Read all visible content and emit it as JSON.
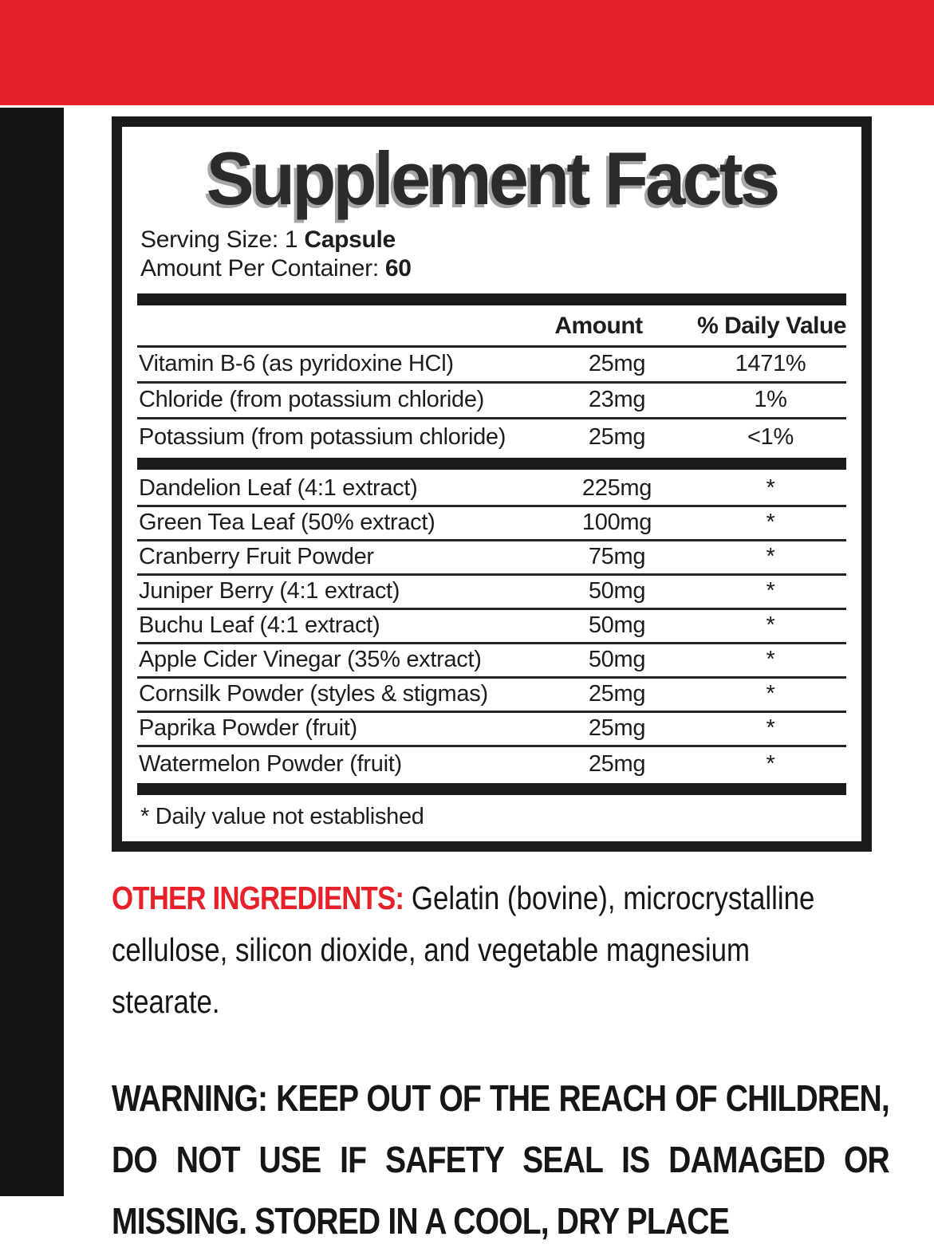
{
  "colors": {
    "accent_red": "#E62129"
  },
  "facts_panel": {
    "title": "Supplement Facts",
    "serving_size_prefix": "Serving Size: 1",
    "serving_size_bold": "Capsule",
    "container_prefix": "Amount Per Container:",
    "container_bold": "60",
    "header": {
      "amount": "Amount",
      "daily_value": "% Daily Value"
    },
    "rows": [
      {
        "name": "Vitamin B-6 (as pyridoxine HCl)",
        "amount": "25mg",
        "dv": "1471%"
      },
      {
        "name": "Chloride (from potassium chloride)",
        "amount": "23mg",
        "dv": "1%"
      },
      {
        "name": "Potassium (from potassium chloride)",
        "amount": "25mg",
        "dv": "<1%"
      },
      {
        "name": "Dandelion Leaf (4:1 extract)",
        "amount": "225mg",
        "dv": "*"
      },
      {
        "name": "Green Tea Leaf (50% extract)",
        "amount": "100mg",
        "dv": "*"
      },
      {
        "name": "Cranberry Fruit Powder",
        "amount": "75mg",
        "dv": "*"
      },
      {
        "name": "Juniper Berry (4:1 extract)",
        "amount": "50mg",
        "dv": "*"
      },
      {
        "name": "Buchu Leaf (4:1 extract)",
        "amount": "50mg",
        "dv": "*"
      },
      {
        "name": "Apple Cider Vinegar (35% extract)",
        "amount": "50mg",
        "dv": "*"
      },
      {
        "name": "Cornsilk Powder (styles & stigmas)",
        "amount": "25mg",
        "dv": "*"
      },
      {
        "name": "Paprika Powder (fruit)",
        "amount": "25mg",
        "dv": "*"
      },
      {
        "name": "Watermelon Powder (fruit)",
        "amount": "25mg",
        "dv": "*"
      }
    ],
    "footnote": "* Daily value not established"
  },
  "other_ingredients": {
    "label": "OTHER INGREDIENTS:",
    "line1_rest": "Gelatin (bovine), microcrystalline",
    "line2": "cellulose, silicon dioxide, and vegetable magnesium",
    "line3": "stearate."
  },
  "warning": {
    "lines": [
      "WARNING: KEEP OUT OF THE REACH OF CHILDREN,",
      "DO NOT USE IF SAFETY SEAL IS DAMAGED OR",
      "MISSING. STORED IN A COOL, DRY PLACE"
    ]
  }
}
